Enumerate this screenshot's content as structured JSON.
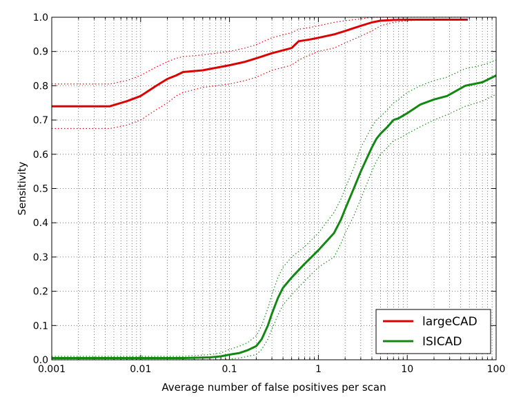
{
  "chart_data": {
    "type": "line",
    "xscale": "log",
    "xlabel": "Average number of false positives per scan",
    "ylabel": "Sensitivity",
    "xlim": [
      0.001,
      100
    ],
    "ylim": [
      0.0,
      1.0
    ],
    "grid": true,
    "legend_position": "bottom-right",
    "x_ticks": [
      "0.001",
      "0.01",
      "0.1",
      "1",
      "10",
      "100"
    ],
    "y_ticks": [
      "0.0",
      "0.1",
      "0.2",
      "0.3",
      "0.4",
      "0.5",
      "0.6",
      "0.7",
      "0.8",
      "0.9",
      "1.0"
    ],
    "series": [
      {
        "name": "largeCAD",
        "color": "#dd0000",
        "x": [
          0.001,
          0.002,
          0.0045,
          0.007,
          0.01,
          0.015,
          0.02,
          0.025,
          0.03,
          0.05,
          0.1,
          0.15,
          0.2,
          0.3,
          0.5,
          0.6,
          0.8,
          1.0,
          1.5,
          2.0,
          3.0,
          4.0,
          5.0,
          7.0,
          10.0,
          20.0,
          48.0
        ],
        "y": [
          0.74,
          0.74,
          0.74,
          0.755,
          0.77,
          0.8,
          0.82,
          0.83,
          0.84,
          0.845,
          0.86,
          0.87,
          0.88,
          0.895,
          0.91,
          0.93,
          0.935,
          0.94,
          0.95,
          0.96,
          0.975,
          0.985,
          0.99,
          0.992,
          0.993,
          0.993,
          0.993
        ],
        "lower": [
          0.675,
          0.675,
          0.675,
          0.685,
          0.7,
          0.73,
          0.75,
          0.77,
          0.78,
          0.795,
          0.805,
          0.815,
          0.825,
          0.845,
          0.86,
          0.875,
          0.89,
          0.9,
          0.91,
          0.925,
          0.945,
          0.96,
          0.975,
          0.985,
          0.99,
          0.993,
          0.993
        ],
        "upper": [
          0.805,
          0.805,
          0.805,
          0.815,
          0.83,
          0.855,
          0.87,
          0.88,
          0.885,
          0.89,
          0.9,
          0.91,
          0.92,
          0.94,
          0.955,
          0.965,
          0.97,
          0.975,
          0.985,
          0.99,
          0.995,
          1.0,
          1.0,
          1.0,
          1.0,
          1.0,
          1.0
        ]
      },
      {
        "name": "ISICAD",
        "color": "#118811",
        "x": [
          0.001,
          0.01,
          0.03,
          0.06,
          0.08,
          0.1,
          0.13,
          0.16,
          0.2,
          0.23,
          0.27,
          0.3,
          0.35,
          0.4,
          0.5,
          0.7,
          1.0,
          1.5,
          1.8,
          2.0,
          2.5,
          3.0,
          4.0,
          4.5,
          5.0,
          6.0,
          7.0,
          8.0,
          10.0,
          14.0,
          20.0,
          28.0,
          45.0,
          70.0,
          100.0
        ],
        "y": [
          0.005,
          0.005,
          0.005,
          0.007,
          0.01,
          0.015,
          0.02,
          0.028,
          0.04,
          0.06,
          0.1,
          0.135,
          0.18,
          0.21,
          0.24,
          0.28,
          0.32,
          0.37,
          0.41,
          0.44,
          0.5,
          0.55,
          0.62,
          0.645,
          0.66,
          0.68,
          0.7,
          0.705,
          0.72,
          0.745,
          0.76,
          0.77,
          0.8,
          0.81,
          0.83
        ],
        "lower": [
          0.0,
          0.0,
          0.0,
          0.0,
          0.0,
          0.002,
          0.005,
          0.01,
          0.015,
          0.03,
          0.06,
          0.09,
          0.13,
          0.16,
          0.19,
          0.23,
          0.27,
          0.3,
          0.34,
          0.37,
          0.42,
          0.47,
          0.55,
          0.58,
          0.6,
          0.62,
          0.64,
          0.645,
          0.66,
          0.68,
          0.7,
          0.715,
          0.74,
          0.755,
          0.775
        ],
        "upper": [
          0.01,
          0.01,
          0.01,
          0.015,
          0.02,
          0.03,
          0.04,
          0.05,
          0.07,
          0.1,
          0.15,
          0.19,
          0.24,
          0.27,
          0.3,
          0.33,
          0.37,
          0.43,
          0.47,
          0.5,
          0.56,
          0.62,
          0.68,
          0.7,
          0.71,
          0.73,
          0.75,
          0.76,
          0.78,
          0.8,
          0.815,
          0.825,
          0.85,
          0.86,
          0.875
        ]
      }
    ]
  }
}
